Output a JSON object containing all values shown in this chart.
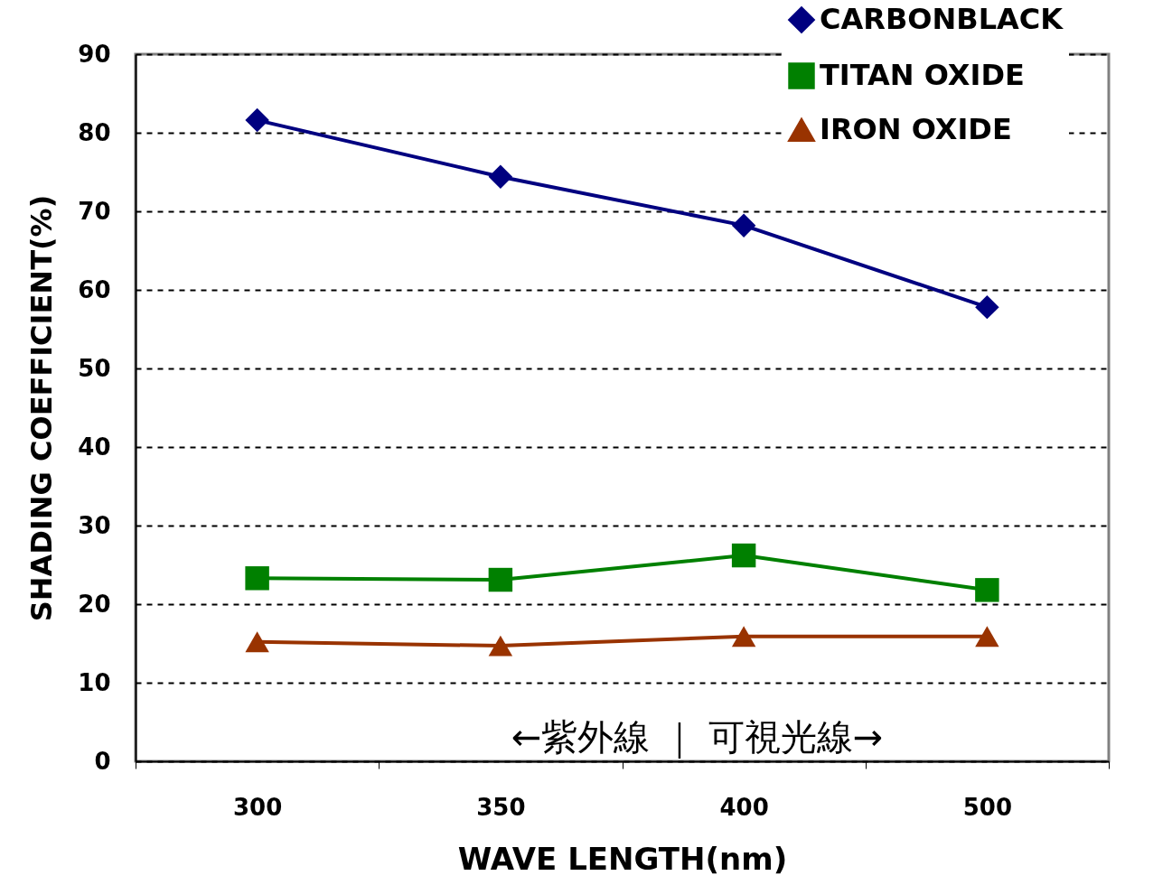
{
  "chart_data": {
    "type": "line",
    "xlabel": "WAVE  LENGTH(nm)",
    "ylabel": "SHADING COEFFICIENT(%)",
    "categories": [
      "300",
      "350",
      "400",
      "500"
    ],
    "series": [
      {
        "name": "CARBONBLACK",
        "color": "#000080",
        "marker": "diamond",
        "values": [
          81.6,
          74.4,
          68.2,
          57.8
        ]
      },
      {
        "name": "TITAN OXIDE",
        "color": "#008000",
        "marker": "square",
        "values": [
          23.3,
          23.1,
          26.2,
          21.8
        ]
      },
      {
        "name": "IRON  OXIDE",
        "color": "#993300",
        "marker": "triangle",
        "values": [
          15.2,
          14.7,
          15.9,
          15.9
        ]
      }
    ],
    "ylim": [
      0,
      90
    ],
    "yticks": [
      0,
      10,
      20,
      30,
      40,
      50,
      60,
      70,
      80,
      90
    ],
    "grid": "y",
    "legend": "top right",
    "line_style": "solid",
    "annotations": [
      "←紫外線 ｜ 可視光線→"
    ]
  }
}
